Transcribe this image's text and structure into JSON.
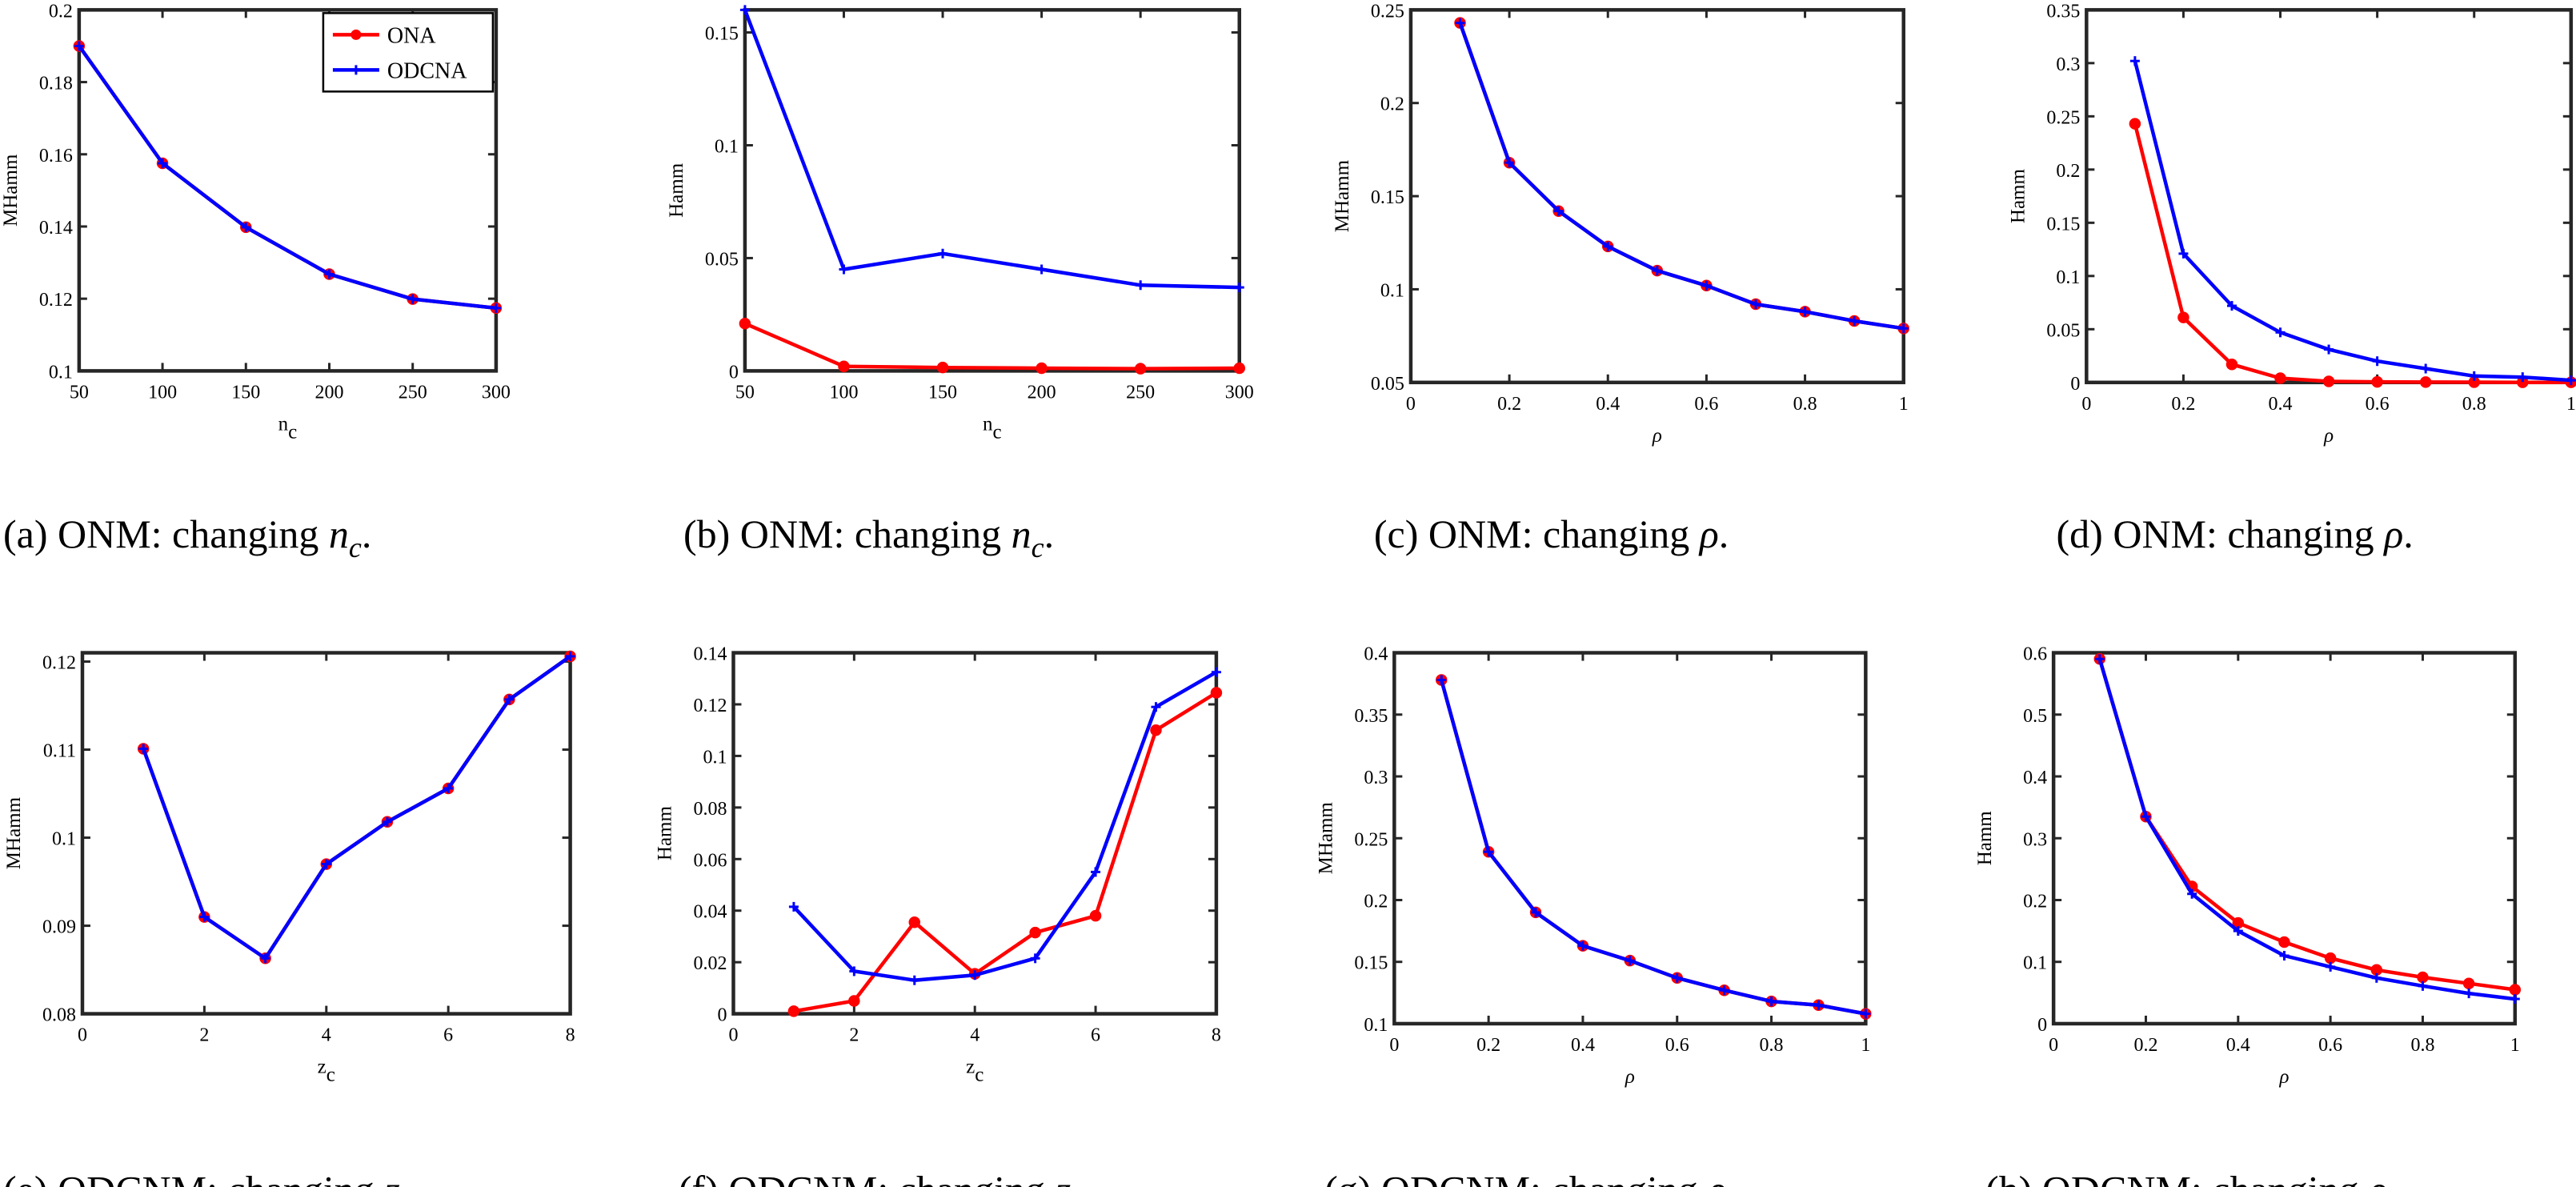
{
  "colors": {
    "ONA": "#ff0000",
    "ODCNA": "#0000ff",
    "axis": "#262626"
  },
  "legend": {
    "entries": [
      "ONA",
      "ODCNA"
    ],
    "placement": "top-right",
    "panel": "a"
  },
  "chart_data": [
    {
      "id": "a",
      "type": "line",
      "caption": {
        "prefix": "(a)  ONM: changing ",
        "var": "n",
        "sub": "c",
        "end": "."
      },
      "ylabel": "MHamm",
      "xlabel": "n",
      "xlabel_sub": "c",
      "xlim": [
        50,
        300
      ],
      "ylim": [
        0.1,
        0.2
      ],
      "xticks": [
        50,
        100,
        150,
        200,
        250,
        300
      ],
      "xtick_labels": [
        "50",
        "100",
        "150",
        "200",
        "250",
        "300"
      ],
      "yticks": [
        0.1,
        0.12,
        0.14,
        0.16,
        0.18,
        0.2
      ],
      "ytick_labels": [
        "0.1",
        "0.12",
        "0.14",
        "0.16",
        "0.18",
        "0.2"
      ],
      "x": [
        50,
        100,
        150,
        200,
        250,
        300
      ],
      "series": [
        {
          "name": "ONA",
          "values": [
            0.19,
            0.1575,
            0.1398,
            0.1268,
            0.1199,
            0.1174
          ]
        },
        {
          "name": "ODCNA",
          "values": [
            0.19,
            0.1575,
            0.1398,
            0.1268,
            0.1199,
            0.1174
          ]
        }
      ]
    },
    {
      "id": "b",
      "type": "line",
      "caption": {
        "prefix": "(b)  ONM: changing ",
        "var": "n",
        "sub": "c",
        "end": "."
      },
      "ylabel": "Hamm",
      "xlabel": "n",
      "xlabel_sub": "c",
      "xlim": [
        50,
        300
      ],
      "ylim": [
        0,
        0.16
      ],
      "xticks": [
        50,
        100,
        150,
        200,
        250,
        300
      ],
      "xtick_labels": [
        "50",
        "100",
        "150",
        "200",
        "250",
        "300"
      ],
      "yticks": [
        0,
        0.05,
        0.1,
        0.15
      ],
      "ytick_labels": [
        "0",
        "0.05",
        "0.1",
        "0.15"
      ],
      "x": [
        50,
        100,
        150,
        200,
        250,
        300
      ],
      "series": [
        {
          "name": "ONA",
          "values": [
            0.021,
            0.002,
            0.0015,
            0.0012,
            0.001,
            0.0012
          ]
        },
        {
          "name": "ODCNA",
          "values": [
            0.16,
            0.045,
            0.052,
            0.045,
            0.038,
            0.037
          ]
        }
      ]
    },
    {
      "id": "c",
      "type": "line",
      "caption": {
        "prefix": "(c)  ONM: changing ",
        "var": "ρ",
        "sub": "",
        "end": "."
      },
      "ylabel": "MHamm",
      "xlabel": "ρ",
      "xlabel_sub": "",
      "xlim": [
        0,
        1
      ],
      "ylim": [
        0.05,
        0.25
      ],
      "xticks": [
        0,
        0.2,
        0.4,
        0.6,
        0.8,
        1
      ],
      "xtick_labels": [
        "0",
        "0.2",
        "0.4",
        "0.6",
        "0.8",
        "1"
      ],
      "yticks": [
        0.05,
        0.1,
        0.15,
        0.2,
        0.25
      ],
      "ytick_labels": [
        "0.05",
        "0.1",
        "0.15",
        "0.2",
        "0.25"
      ],
      "x": [
        0.1,
        0.2,
        0.3,
        0.4,
        0.5,
        0.6,
        0.7,
        0.8,
        0.9,
        1.0
      ],
      "series": [
        {
          "name": "ONA",
          "values": [
            0.243,
            0.168,
            0.142,
            0.123,
            0.11,
            0.102,
            0.092,
            0.088,
            0.083,
            0.079
          ]
        },
        {
          "name": "ODCNA",
          "values": [
            0.243,
            0.168,
            0.142,
            0.123,
            0.11,
            0.102,
            0.092,
            0.088,
            0.083,
            0.079
          ]
        }
      ]
    },
    {
      "id": "d",
      "type": "line",
      "caption": {
        "prefix": "(d)  ONM: changing ",
        "var": "ρ",
        "sub": "",
        "end": "."
      },
      "ylabel": "Hamm",
      "xlabel": "ρ",
      "xlabel_sub": "",
      "xlim": [
        0,
        1
      ],
      "ylim": [
        0,
        0.35
      ],
      "xticks": [
        0,
        0.2,
        0.4,
        0.6,
        0.8,
        1
      ],
      "xtick_labels": [
        "0",
        "0.2",
        "0.4",
        "0.6",
        "0.8",
        "1"
      ],
      "yticks": [
        0,
        0.05,
        0.1,
        0.15,
        0.2,
        0.25,
        0.3,
        0.35
      ],
      "ytick_labels": [
        "0",
        "0.05",
        "0.1",
        "0.15",
        "0.2",
        "0.25",
        "0.3",
        "0.35"
      ],
      "x": [
        0.1,
        0.2,
        0.3,
        0.4,
        0.5,
        0.6,
        0.7,
        0.8,
        0.9,
        1.0
      ],
      "series": [
        {
          "name": "ONA",
          "values": [
            0.243,
            0.061,
            0.017,
            0.004,
            0.001,
            0.0005,
            0.0003,
            0.0002,
            0.0001,
            0.0001
          ]
        },
        {
          "name": "ODCNA",
          "values": [
            0.302,
            0.121,
            0.072,
            0.047,
            0.031,
            0.02,
            0.013,
            0.006,
            0.005,
            0.002
          ]
        }
      ]
    },
    {
      "id": "e",
      "type": "line",
      "caption": {
        "prefix": "(e)  ODCNM: changing ",
        "var": "z",
        "sub": "c",
        "end": "."
      },
      "ylabel": "MHamm",
      "xlabel": "z",
      "xlabel_sub": "c",
      "xlim": [
        0,
        8
      ],
      "ylim": [
        0.08,
        0.121
      ],
      "xticks": [
        0,
        2,
        4,
        6,
        8
      ],
      "xtick_labels": [
        "0",
        "2",
        "4",
        "6",
        "8"
      ],
      "yticks": [
        0.08,
        0.09,
        0.1,
        0.11,
        0.12
      ],
      "ytick_labels": [
        "0.08",
        "0.09",
        "0.1",
        "0.11",
        "0.12"
      ],
      "x": [
        1,
        2,
        3,
        4,
        5,
        6,
        7,
        8
      ],
      "series": [
        {
          "name": "ONA",
          "values": [
            0.1101,
            0.091,
            0.0863,
            0.097,
            0.1018,
            0.1056,
            0.1157,
            0.1206
          ]
        },
        {
          "name": "ODCNA",
          "values": [
            0.1101,
            0.091,
            0.0863,
            0.097,
            0.1018,
            0.1056,
            0.1157,
            0.1206
          ]
        }
      ]
    },
    {
      "id": "f",
      "type": "line",
      "caption": {
        "prefix": "(f)  ODCNM: changing ",
        "var": "z",
        "sub": "c",
        "end": "."
      },
      "ylabel": "Hamm",
      "xlabel": "z",
      "xlabel_sub": "c",
      "xlim": [
        0,
        8
      ],
      "ylim": [
        0,
        0.14
      ],
      "xticks": [
        0,
        2,
        4,
        6,
        8
      ],
      "xtick_labels": [
        "0",
        "2",
        "4",
        "6",
        "8"
      ],
      "yticks": [
        0,
        0.02,
        0.04,
        0.06,
        0.08,
        0.1,
        0.12,
        0.14
      ],
      "ytick_labels": [
        "0",
        "0.02",
        "0.04",
        "0.06",
        "0.08",
        "0.1",
        "0.12",
        "0.14"
      ],
      "x": [
        1,
        2,
        3,
        4,
        5,
        6,
        7,
        8
      ],
      "series": [
        {
          "name": "ONA",
          "values": [
            0.001,
            0.005,
            0.0355,
            0.0155,
            0.0315,
            0.038,
            0.11,
            0.1245
          ]
        },
        {
          "name": "ODCNA",
          "values": [
            0.0415,
            0.0165,
            0.013,
            0.015,
            0.0215,
            0.055,
            0.119,
            0.1325
          ]
        }
      ]
    },
    {
      "id": "g",
      "type": "line",
      "caption": {
        "prefix": "(g)  ODCNM: changing ",
        "var": "ρ",
        "sub": "",
        "end": "."
      },
      "ylabel": "MHamm",
      "xlabel": "ρ",
      "xlabel_sub": "",
      "xlim": [
        0,
        1
      ],
      "ylim": [
        0.1,
        0.4
      ],
      "xticks": [
        0,
        0.2,
        0.4,
        0.6,
        0.8,
        1
      ],
      "xtick_labels": [
        "0",
        "0.2",
        "0.4",
        "0.6",
        "0.8",
        "1"
      ],
      "yticks": [
        0.1,
        0.15,
        0.2,
        0.25,
        0.3,
        0.35,
        0.4
      ],
      "ytick_labels": [
        "0.1",
        "0.15",
        "0.2",
        "0.25",
        "0.3",
        "0.35",
        "0.4"
      ],
      "x": [
        0.1,
        0.2,
        0.3,
        0.4,
        0.5,
        0.6,
        0.7,
        0.8,
        0.9,
        1.0
      ],
      "series": [
        {
          "name": "ONA",
          "values": [
            0.378,
            0.239,
            0.19,
            0.163,
            0.151,
            0.137,
            0.127,
            0.118,
            0.115,
            0.108
          ]
        },
        {
          "name": "ODCNA",
          "values": [
            0.378,
            0.239,
            0.19,
            0.163,
            0.151,
            0.137,
            0.127,
            0.118,
            0.115,
            0.108
          ]
        }
      ]
    },
    {
      "id": "h",
      "type": "line",
      "caption": {
        "prefix": "(h)  ODCNM: changing ",
        "var": "ρ",
        "sub": "",
        "end": "."
      },
      "ylabel": "Hamm",
      "xlabel": "ρ",
      "xlabel_sub": "",
      "xlim": [
        0,
        1
      ],
      "ylim": [
        0,
        0.6
      ],
      "xticks": [
        0,
        0.2,
        0.4,
        0.6,
        0.8,
        1
      ],
      "xtick_labels": [
        "0",
        "0.2",
        "0.4",
        "0.6",
        "0.8",
        "1"
      ],
      "yticks": [
        0,
        0.1,
        0.2,
        0.3,
        0.4,
        0.5,
        0.6
      ],
      "ytick_labels": [
        "0",
        "0.1",
        "0.2",
        "0.3",
        "0.4",
        "0.5",
        "0.6"
      ],
      "x": [
        0.1,
        0.2,
        0.3,
        0.4,
        0.5,
        0.6,
        0.7,
        0.8,
        0.9,
        1.0
      ],
      "series": [
        {
          "name": "ONA",
          "values": [
            0.59,
            0.335,
            0.222,
            0.163,
            0.132,
            0.106,
            0.087,
            0.075,
            0.065,
            0.055
          ]
        },
        {
          "name": "ODCNA",
          "values": [
            0.59,
            0.335,
            0.21,
            0.15,
            0.11,
            0.092,
            0.074,
            0.061,
            0.049,
            0.04
          ]
        }
      ]
    }
  ]
}
